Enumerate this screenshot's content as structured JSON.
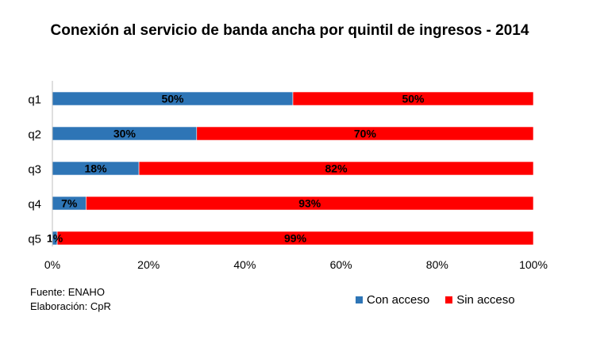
{
  "chart_data": {
    "type": "bar",
    "orientation": "horizontal",
    "stacked": "percent",
    "title": "Conexión al servicio de banda ancha por quintil de ingresos - 2014",
    "categories": [
      "q1",
      "q2",
      "q3",
      "q4",
      "q5"
    ],
    "series": [
      {
        "name": "Con acceso",
        "color": "#2e75b6",
        "values": [
          50,
          30,
          18,
          7,
          1
        ],
        "labels": [
          "50%",
          "30%",
          "18%",
          "7%",
          "1%"
        ]
      },
      {
        "name": "Sin acceso",
        "color": "#ff0000",
        "values": [
          50,
          70,
          82,
          93,
          99
        ],
        "labels": [
          "50%",
          "70%",
          "82%",
          "93%",
          "99%"
        ]
      }
    ],
    "xlim": [
      0,
      100
    ],
    "xticks": [
      "0%",
      "20%",
      "40%",
      "60%",
      "80%",
      "100%"
    ],
    "grid": false,
    "legend": "bottom-right"
  },
  "source": {
    "fuente": "Fuente: ENAHO",
    "elaboracion": "Elaboración: CpR"
  }
}
